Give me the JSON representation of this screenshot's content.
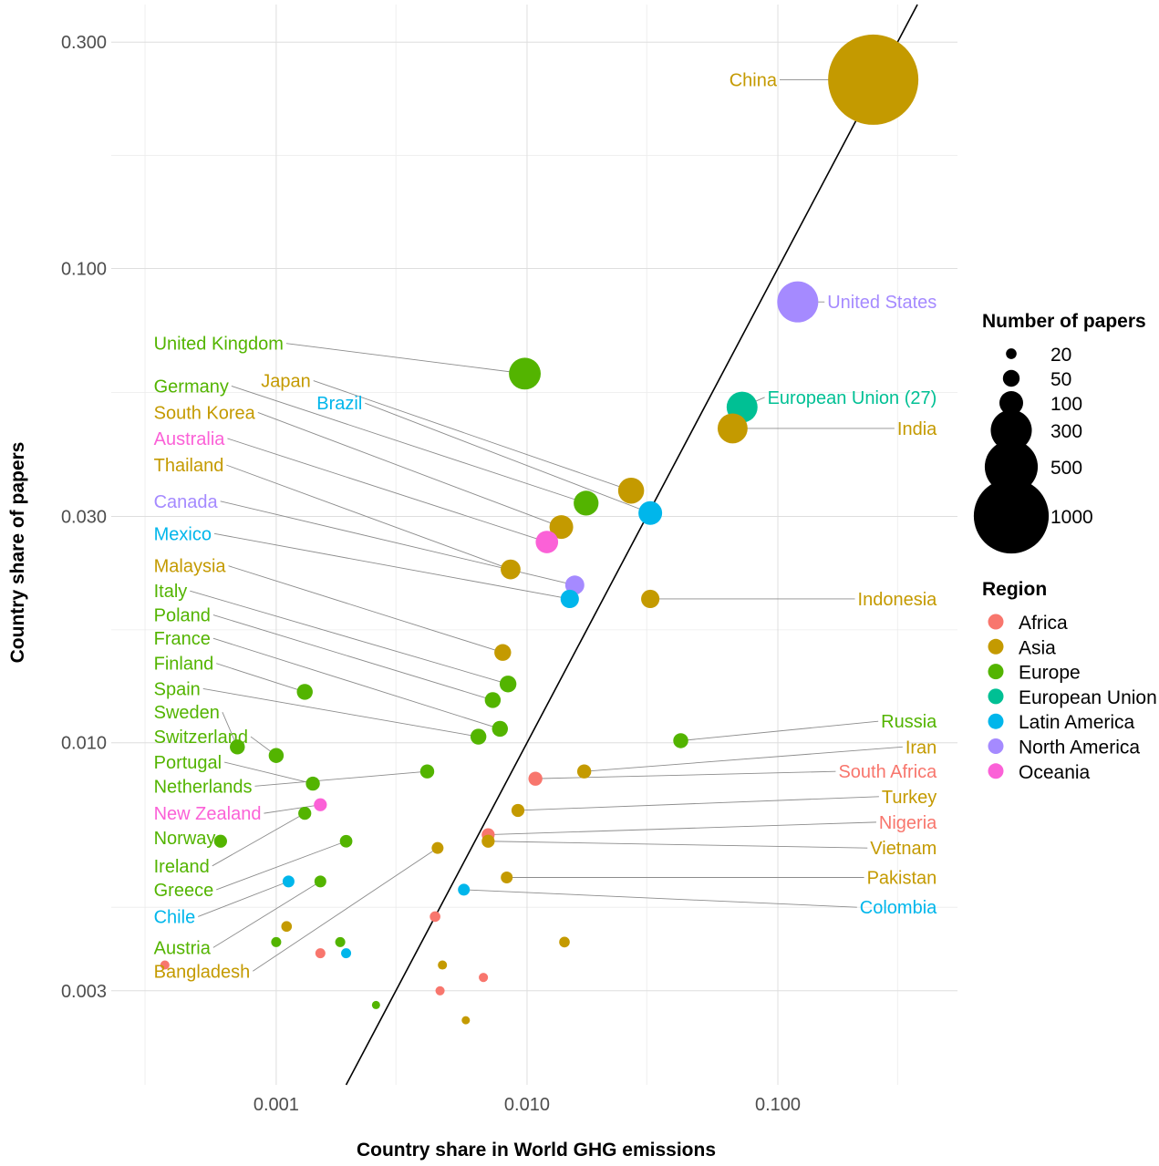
{
  "chart_data": {
    "type": "scatter",
    "xlabel": "Country share in World GHG emissions",
    "ylabel": "Country share of papers",
    "x_scale": "log10",
    "y_scale": "log10",
    "xlim": [
      0.00022,
      0.52
    ],
    "ylim": [
      0.0019,
      0.36
    ],
    "x_ticks": [
      {
        "value": 0.001,
        "label": "0.001"
      },
      {
        "value": 0.01,
        "label": "0.010"
      },
      {
        "value": 0.1,
        "label": "0.100"
      }
    ],
    "y_ticks": [
      {
        "value": 0.003,
        "label": "0.003"
      },
      {
        "value": 0.01,
        "label": "0.010"
      },
      {
        "value": 0.03,
        "label": "0.030"
      },
      {
        "value": 0.1,
        "label": "0.100"
      },
      {
        "value": 0.3,
        "label": "0.300"
      }
    ],
    "x_minor": [
      0.0003,
      0.003,
      0.03,
      0.3
    ],
    "y_minor": [
      0.0045,
      0.0173,
      0.0548,
      0.173
    ],
    "grid": true,
    "reference_line": "y = x",
    "region_colors": {
      "Africa": "#F8766D",
      "Asia": "#C49A00",
      "Europe": "#53B400",
      "European Union": "#00C094",
      "Latin America": "#00B6EB",
      "North America": "#A58AFF",
      "Oceania": "#FB61D7"
    },
    "points": [
      {
        "name": "China",
        "region": "Asia",
        "x": 0.24,
        "y": 0.25,
        "papers": 1450
      },
      {
        "name": "United States",
        "region": "North America",
        "x": 0.12,
        "y": 0.085,
        "papers": 300
      },
      {
        "name": "European Union (27)",
        "region": "European Union",
        "x": 0.072,
        "y": 0.051,
        "papers": 170
      },
      {
        "name": "India",
        "region": "Asia",
        "x": 0.066,
        "y": 0.046,
        "papers": 160
      },
      {
        "name": "United Kingdom",
        "region": "Europe",
        "x": 0.0098,
        "y": 0.06,
        "papers": 180
      },
      {
        "name": "Japan",
        "region": "Asia",
        "x": 0.026,
        "y": 0.034,
        "papers": 120
      },
      {
        "name": "Germany",
        "region": "Europe",
        "x": 0.0172,
        "y": 0.032,
        "papers": 110
      },
      {
        "name": "Brazil",
        "region": "Latin America",
        "x": 0.031,
        "y": 0.0305,
        "papers": 100
      },
      {
        "name": "South Korea",
        "region": "Asia",
        "x": 0.0137,
        "y": 0.0285,
        "papers": 100
      },
      {
        "name": "Australia",
        "region": "Oceania",
        "x": 0.012,
        "y": 0.0265,
        "papers": 90
      },
      {
        "name": "Thailand",
        "region": "Asia",
        "x": 0.0086,
        "y": 0.0232,
        "papers": 70
      },
      {
        "name": "Canada",
        "region": "North America",
        "x": 0.0155,
        "y": 0.0215,
        "papers": 65
      },
      {
        "name": "Mexico",
        "region": "Latin America",
        "x": 0.0148,
        "y": 0.0201,
        "papers": 60
      },
      {
        "name": "Indonesia",
        "region": "Asia",
        "x": 0.031,
        "y": 0.0201,
        "papers": 60
      },
      {
        "name": "Malaysia",
        "region": "Asia",
        "x": 0.008,
        "y": 0.0155,
        "papers": 50
      },
      {
        "name": "Italy",
        "region": "Europe",
        "x": 0.0084,
        "y": 0.0133,
        "papers": 50
      },
      {
        "name": "Poland",
        "region": "Europe",
        "x": 0.0073,
        "y": 0.0123,
        "papers": 45
      },
      {
        "name": "France",
        "region": "Europe",
        "x": 0.0078,
        "y": 0.0107,
        "papers": 45
      },
      {
        "name": "Finland",
        "region": "Europe",
        "x": 0.0013,
        "y": 0.0128,
        "papers": 45
      },
      {
        "name": "Spain",
        "region": "Europe",
        "x": 0.0064,
        "y": 0.0103,
        "papers": 45
      },
      {
        "name": "Sweden",
        "region": "Europe",
        "x": 0.0007,
        "y": 0.0098,
        "papers": 40
      },
      {
        "name": "Switzerland",
        "region": "Europe",
        "x": 0.001,
        "y": 0.0094,
        "papers": 40
      },
      {
        "name": "Russia",
        "region": "Europe",
        "x": 0.041,
        "y": 0.0101,
        "papers": 40
      },
      {
        "name": "Iran",
        "region": "Asia",
        "x": 0.0169,
        "y": 0.0087,
        "papers": 35
      },
      {
        "name": "South Africa",
        "region": "Africa",
        "x": 0.0108,
        "y": 0.0084,
        "papers": 35
      },
      {
        "name": "Portugal",
        "region": "Europe",
        "x": 0.0014,
        "y": 0.0082,
        "papers": 35
      },
      {
        "name": "Netherlands",
        "region": "Europe",
        "x": 0.004,
        "y": 0.0087,
        "papers": 35
      },
      {
        "name": "Turkey",
        "region": "Asia",
        "x": 0.0092,
        "y": 0.0072,
        "papers": 30
      },
      {
        "name": "New Zealand",
        "region": "Oceania",
        "x": 0.0015,
        "y": 0.0074,
        "papers": 30
      },
      {
        "name": "Nigeria",
        "region": "Africa",
        "x": 0.007,
        "y": 0.0064,
        "papers": 30
      },
      {
        "name": "Vietnam",
        "region": "Asia",
        "x": 0.007,
        "y": 0.0062,
        "papers": 30
      },
      {
        "name": "Norway",
        "region": "Europe",
        "x": 0.0006,
        "y": 0.0062,
        "papers": 30
      },
      {
        "name": "Ireland",
        "region": "Europe",
        "x": 0.0013,
        "y": 0.0071,
        "papers": 30
      },
      {
        "name": "Greece",
        "region": "Europe",
        "x": 0.0019,
        "y": 0.0062,
        "papers": 28
      },
      {
        "name": "Chile",
        "region": "Latin America",
        "x": 0.00112,
        "y": 0.0051,
        "papers": 25
      },
      {
        "name": "Austria",
        "region": "Europe",
        "x": 0.0015,
        "y": 0.0051,
        "papers": 25
      },
      {
        "name": "Bangladesh",
        "region": "Asia",
        "x": 0.0044,
        "y": 0.006,
        "papers": 25
      },
      {
        "name": "Pakistan",
        "region": "Asia",
        "x": 0.0083,
        "y": 0.0052,
        "papers": 25
      },
      {
        "name": "Colombia",
        "region": "Latin America",
        "x": 0.0056,
        "y": 0.0049,
        "papers": 25
      },
      {
        "name": "",
        "region": "Africa",
        "x": 0.0043,
        "y": 0.0043,
        "papers": 20
      },
      {
        "name": "",
        "region": "Asia",
        "x": 0.0011,
        "y": 0.0041,
        "papers": 20
      },
      {
        "name": "",
        "region": "Asia",
        "x": 0.0141,
        "y": 0.0038,
        "papers": 20
      },
      {
        "name": "",
        "region": "Europe",
        "x": 0.001,
        "y": 0.0038,
        "papers": 18
      },
      {
        "name": "",
        "region": "Europe",
        "x": 0.0018,
        "y": 0.0038,
        "papers": 18
      },
      {
        "name": "",
        "region": "Africa",
        "x": 0.0015,
        "y": 0.0036,
        "papers": 18
      },
      {
        "name": "",
        "region": "Latin America",
        "x": 0.0019,
        "y": 0.0036,
        "papers": 18
      },
      {
        "name": "",
        "region": "Africa",
        "x": 0.00036,
        "y": 0.0034,
        "papers": 15
      },
      {
        "name": "",
        "region": "Asia",
        "x": 0.0046,
        "y": 0.0034,
        "papers": 15
      },
      {
        "name": "",
        "region": "Africa",
        "x": 0.0067,
        "y": 0.0032,
        "papers": 15
      },
      {
        "name": "",
        "region": "Africa",
        "x": 0.0045,
        "y": 0.003,
        "papers": 15
      },
      {
        "name": "",
        "region": "Europe",
        "x": 0.0025,
        "y": 0.0028,
        "papers": 12
      },
      {
        "name": "",
        "region": "Asia",
        "x": 0.0057,
        "y": 0.0026,
        "papers": 12
      }
    ],
    "labels": [
      {
        "text": "China",
        "point": "China",
        "side": "left",
        "lx": 0.064,
        "ly": 0.25
      },
      {
        "text": "United States",
        "point": "United States",
        "side": "right",
        "lx": 0.43,
        "ly": 0.085
      },
      {
        "text": "European Union (27)",
        "point": "European Union (27)",
        "side": "right",
        "lx": 0.43,
        "ly": 0.0535
      },
      {
        "text": "India",
        "point": "India",
        "side": "right",
        "lx": 0.43,
        "ly": 0.046
      },
      {
        "text": "United Kingdom",
        "point": "United Kingdom",
        "side": "left",
        "lx": 0.000325,
        "ly": 0.0695
      },
      {
        "text": "Germany",
        "point": "Germany",
        "side": "left",
        "lx": 0.000325,
        "ly": 0.0565
      },
      {
        "text": "Japan",
        "point": "Japan",
        "side": "left",
        "lx": 0.00087,
        "ly": 0.058
      },
      {
        "text": "Brazil",
        "point": "Brazil",
        "side": "left",
        "lx": 0.00145,
        "ly": 0.052
      },
      {
        "text": "South Korea",
        "point": "South Korea",
        "side": "left",
        "lx": 0.000325,
        "ly": 0.0497
      },
      {
        "text": "Australia",
        "point": "Australia",
        "side": "left",
        "lx": 0.000325,
        "ly": 0.0438
      },
      {
        "text": "Thailand",
        "point": "Thailand",
        "side": "left",
        "lx": 0.000325,
        "ly": 0.0385
      },
      {
        "text": "Canada",
        "point": "Canada",
        "side": "left",
        "lx": 0.000325,
        "ly": 0.0323
      },
      {
        "text": "Mexico",
        "point": "Mexico",
        "side": "left",
        "lx": 0.000325,
        "ly": 0.0276
      },
      {
        "text": "Indonesia",
        "point": "Indonesia",
        "side": "right",
        "lx": 0.43,
        "ly": 0.0201
      },
      {
        "text": "Malaysia",
        "point": "Malaysia",
        "side": "left",
        "lx": 0.000325,
        "ly": 0.0236
      },
      {
        "text": "Italy",
        "point": "Italy",
        "side": "left",
        "lx": 0.000325,
        "ly": 0.0209
      },
      {
        "text": "Poland",
        "point": "Poland",
        "side": "left",
        "lx": 0.000325,
        "ly": 0.0186
      },
      {
        "text": "France",
        "point": "France",
        "side": "left",
        "lx": 0.000325,
        "ly": 0.0166
      },
      {
        "text": "Finland",
        "point": "Finland",
        "side": "left",
        "lx": 0.000325,
        "ly": 0.0147
      },
      {
        "text": "Spain",
        "point": "Spain",
        "side": "left",
        "lx": 0.000325,
        "ly": 0.013
      },
      {
        "text": "Sweden",
        "point": "Sweden",
        "side": "left",
        "lx": 0.000325,
        "ly": 0.0116
      },
      {
        "text": "Switzerland",
        "point": "Switzerland",
        "side": "left",
        "lx": 0.000325,
        "ly": 0.0103
      },
      {
        "text": "Russia",
        "point": "Russia",
        "side": "right",
        "lx": 0.43,
        "ly": 0.0111
      },
      {
        "text": "Iran",
        "point": "Iran",
        "side": "right",
        "lx": 0.43,
        "ly": 0.0098
      },
      {
        "text": "South Africa",
        "point": "South Africa",
        "side": "right",
        "lx": 0.43,
        "ly": 0.0087
      },
      {
        "text": "Portugal",
        "point": "Portugal",
        "side": "left",
        "lx": 0.000325,
        "ly": 0.0091
      },
      {
        "text": "Netherlands",
        "point": "Netherlands",
        "side": "left",
        "lx": 0.000325,
        "ly": 0.0081
      },
      {
        "text": "Turkey",
        "point": "Turkey",
        "side": "right",
        "lx": 0.43,
        "ly": 0.0077
      },
      {
        "text": "New Zealand",
        "point": "New Zealand",
        "side": "left",
        "lx": 0.000325,
        "ly": 0.0071
      },
      {
        "text": "Nigeria",
        "point": "Nigeria",
        "side": "right",
        "lx": 0.43,
        "ly": 0.0068
      },
      {
        "text": "Vietnam",
        "point": "Vietnam",
        "side": "right",
        "lx": 0.43,
        "ly": 0.006
      },
      {
        "text": "Norway",
        "point": "Norway",
        "side": "left",
        "lx": 0.000325,
        "ly": 0.0063
      },
      {
        "text": "Ireland",
        "point": "Ireland",
        "side": "left",
        "lx": 0.000325,
        "ly": 0.0055
      },
      {
        "text": "Pakistan",
        "point": "Pakistan",
        "side": "right",
        "lx": 0.43,
        "ly": 0.0052
      },
      {
        "text": "Greece",
        "point": "Greece",
        "side": "left",
        "lx": 0.000325,
        "ly": 0.0049
      },
      {
        "text": "Colombia",
        "point": "Colombia",
        "side": "right",
        "lx": 0.43,
        "ly": 0.0045
      },
      {
        "text": "Chile",
        "point": "Chile",
        "side": "left",
        "lx": 0.000325,
        "ly": 0.0043
      },
      {
        "text": "Austria",
        "point": "Austria",
        "side": "left",
        "lx": 0.000325,
        "ly": 0.0037
      },
      {
        "text": "Bangladesh",
        "point": "Bangladesh",
        "side": "left",
        "lx": 0.000325,
        "ly": 0.0033
      }
    ],
    "legend_size": {
      "title": "Number of papers",
      "placement": "right",
      "entries": [
        {
          "label": "20",
          "value": 20
        },
        {
          "label": "50",
          "value": 50
        },
        {
          "label": "100",
          "value": 100
        },
        {
          "label": "300",
          "value": 300
        },
        {
          "label": "500",
          "value": 500
        },
        {
          "label": "1000",
          "value": 1000
        }
      ]
    },
    "legend_color": {
      "title": "Region",
      "placement": "right",
      "entries": [
        {
          "label": "Africa",
          "color": "#F8766D"
        },
        {
          "label": "Asia",
          "color": "#C49A00"
        },
        {
          "label": "Europe",
          "color": "#53B400"
        },
        {
          "label": "European Union",
          "color": "#00C094"
        },
        {
          "label": "Latin America",
          "color": "#00B6EB"
        },
        {
          "label": "North America",
          "color": "#A58AFF"
        },
        {
          "label": "Oceania",
          "color": "#FB61D7"
        }
      ]
    }
  }
}
